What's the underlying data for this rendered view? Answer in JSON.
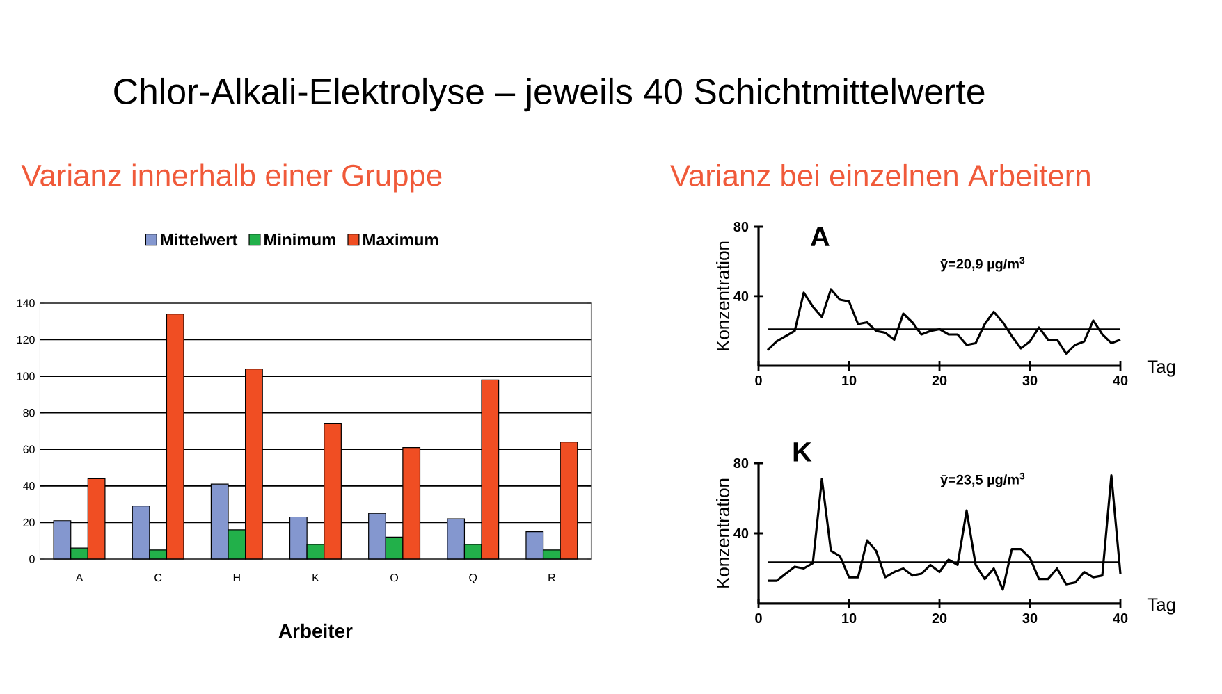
{
  "chart_data": [
    {
      "type": "bar",
      "title": "Chlor-Alkali-Elektrolyse – jeweils 40 Schichtmittelwerte",
      "subtitle": "Varianz innerhalb einer Gruppe",
      "xlabel": "Arbeiter",
      "categories": [
        "A",
        "C",
        "H",
        "K",
        "O",
        "Q",
        "R"
      ],
      "series": [
        {
          "name": "Mittelwert",
          "color": "#8497cf",
          "values": [
            21,
            29,
            41,
            23,
            25,
            22,
            15
          ]
        },
        {
          "name": "Minimum",
          "color": "#22b04a",
          "values": [
            6,
            5,
            16,
            8,
            12,
            8,
            5
          ]
        },
        {
          "name": "Maximum",
          "color": "#f04e23",
          "values": [
            44,
            134,
            104,
            74,
            61,
            98,
            64
          ]
        }
      ],
      "ylim": [
        0,
        140
      ],
      "yticks": [
        0,
        20,
        40,
        60,
        80,
        100,
        120,
        140
      ],
      "grid": "y",
      "legend": "top"
    },
    {
      "type": "line",
      "title": "A",
      "subtitle": "Varianz bei einzelnen Arbeitern",
      "xlabel": "Tag",
      "ylabel": "Konzentration",
      "x": [
        1,
        2,
        3,
        4,
        5,
        6,
        7,
        8,
        9,
        10,
        11,
        12,
        13,
        14,
        15,
        16,
        17,
        18,
        19,
        20,
        21,
        22,
        23,
        24,
        25,
        26,
        27,
        28,
        29,
        30,
        31,
        32,
        33,
        34,
        35,
        36,
        37,
        38,
        39,
        40
      ],
      "series": [
        {
          "color": "#000000",
          "values": [
            9,
            14,
            17,
            20,
            42,
            34,
            28,
            44,
            38,
            37,
            24,
            25,
            20,
            19,
            15,
            30,
            25,
            18,
            20,
            21,
            18,
            18,
            12,
            13,
            24,
            31,
            25,
            17,
            10,
            14,
            22,
            15,
            15,
            7,
            12,
            14,
            26,
            18,
            13,
            15
          ]
        }
      ],
      "xlim": [
        0,
        40
      ],
      "ylim": [
        0,
        80
      ],
      "xticks": [
        0,
        10,
        20,
        30,
        40
      ],
      "yticks": [
        40,
        80
      ],
      "ref_lines": [
        {
          "axis": "y",
          "value": 20.9,
          "label": "ȳ=20,9 µg/m$^{3}$",
          "color": "#000000"
        }
      ]
    },
    {
      "type": "line",
      "title": "K",
      "xlabel": "Tag",
      "ylabel": "Konzentration",
      "x": [
        1,
        2,
        3,
        4,
        5,
        6,
        7,
        8,
        9,
        10,
        11,
        12,
        13,
        14,
        15,
        16,
        17,
        18,
        19,
        20,
        21,
        22,
        23,
        24,
        25,
        26,
        27,
        28,
        29,
        30,
        31,
        32,
        33,
        34,
        35,
        36,
        37,
        38,
        39,
        40
      ],
      "series": [
        {
          "color": "#000000",
          "values": [
            13,
            13,
            17,
            21,
            20,
            23,
            71,
            30,
            27,
            15,
            15,
            36,
            30,
            15,
            18,
            20,
            16,
            17,
            22,
            18,
            25,
            22,
            53,
            22,
            14,
            20,
            8,
            31,
            31,
            26,
            14,
            14,
            20,
            11,
            12,
            18,
            15,
            16,
            73,
            17
          ]
        }
      ],
      "xlim": [
        0,
        40
      ],
      "ylim": [
        0,
        80
      ],
      "xticks": [
        0,
        10,
        20,
        30,
        40
      ],
      "yticks": [
        40,
        80
      ],
      "ref_lines": [
        {
          "axis": "y",
          "value": 23.5,
          "label": "ȳ=23,5 µg/m$^{3}$",
          "color": "#000000"
        }
      ]
    }
  ]
}
